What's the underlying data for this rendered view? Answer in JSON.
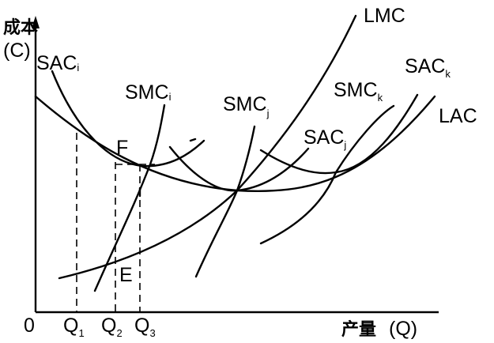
{
  "axes": {
    "y_title": "成本",
    "y_unit": "(C)",
    "x_title": "产量",
    "x_unit": "(Q)",
    "origin": "0"
  },
  "x_ticks": [
    {
      "main": "Q",
      "sub": "1"
    },
    {
      "main": "Q",
      "sub": "2"
    },
    {
      "main": "Q",
      "sub": "3"
    }
  ],
  "points": {
    "f": "F",
    "e": "E"
  },
  "curves": {
    "lmc": {
      "main": "LMC",
      "sub": ""
    },
    "lac": {
      "main": "LAC",
      "sub": ""
    },
    "sac_i": {
      "main": "SAC",
      "sub": "i"
    },
    "smc_i": {
      "main": "SMC",
      "sub": "i"
    },
    "smc_j": {
      "main": "SMC",
      "sub": "j"
    },
    "sac_j": {
      "main": "SAC",
      "sub": "j"
    },
    "smc_k": {
      "main": "SMC",
      "sub": "k"
    },
    "sac_k": {
      "main": "SAC",
      "sub": "k"
    }
  }
}
